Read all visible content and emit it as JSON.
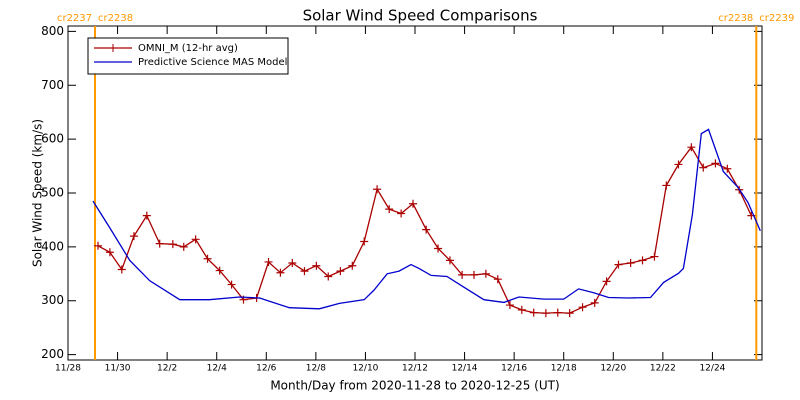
{
  "chart_data": {
    "type": "line",
    "title": "Solar Wind Speed Comparisons",
    "xlabel": "Month/Day from 2020-11-28 to 2020-12-25 (UT)",
    "ylabel": "Solar Wind Speed (km/s)",
    "xlim": [
      0,
      28
    ],
    "ylim": [
      190,
      810
    ],
    "xticks": [
      {
        "value": 0,
        "label": "11/28"
      },
      {
        "value": 2,
        "label": "11/30"
      },
      {
        "value": 4,
        "label": "12/2"
      },
      {
        "value": 6,
        "label": "12/4"
      },
      {
        "value": 8,
        "label": "12/6"
      },
      {
        "value": 10,
        "label": "12/8"
      },
      {
        "value": 12,
        "label": "12/10"
      },
      {
        "value": 14,
        "label": "12/12"
      },
      {
        "value": 16,
        "label": "12/14"
      },
      {
        "value": 18,
        "label": "12/16"
      },
      {
        "value": 20,
        "label": "12/18"
      },
      {
        "value": 22,
        "label": "12/20"
      },
      {
        "value": 24,
        "label": "12/22"
      },
      {
        "value": 26,
        "label": "12/24"
      }
    ],
    "yticks": [
      200,
      300,
      400,
      500,
      600,
      700,
      800
    ],
    "legend": "upper left",
    "boundary_color": "#ff9900",
    "boundaries": [
      {
        "x": 1.09,
        "labels": [
          "cr2237",
          "cr2238"
        ]
      },
      {
        "x": 27.77,
        "labels": [
          "cr2238",
          "cr2239"
        ]
      }
    ],
    "series": [
      {
        "name": "OMNI_M (12-hr avg)",
        "color": "#aa0000",
        "marker": "cross",
        "x": [
          1.21,
          1.69,
          2.17,
          2.66,
          3.18,
          3.7,
          4.23,
          4.67,
          5.15,
          5.63,
          6.12,
          6.6,
          7.08,
          7.61,
          8.09,
          8.57,
          9.05,
          9.54,
          10.02,
          10.5,
          10.99,
          11.47,
          11.95,
          12.47,
          12.96,
          13.44,
          13.92,
          14.45,
          14.93,
          15.41,
          15.9,
          16.38,
          16.86,
          17.34,
          17.83,
          18.31,
          18.79,
          19.28,
          19.76,
          20.24,
          20.76,
          21.25,
          21.73,
          22.21,
          22.7,
          23.18,
          23.66,
          24.14,
          24.63,
          25.15,
          25.63,
          26.12,
          26.6,
          27.08,
          27.57
        ],
        "values": [
          402,
          390,
          358,
          420,
          458,
          406,
          405,
          400,
          414,
          378,
          356,
          330,
          302,
          305,
          372,
          352,
          370,
          355,
          365,
          345,
          355,
          365,
          410,
          507,
          470,
          462,
          480,
          432,
          397,
          375,
          348,
          348,
          350,
          340,
          292,
          283,
          278,
          277,
          278,
          277,
          288,
          296,
          336,
          367,
          370,
          375,
          382,
          514,
          553,
          585,
          547,
          555,
          545,
          506,
          458
        ]
      },
      {
        "name": "Predictive Science MAS Model",
        "color": "#0000cc",
        "marker": "none",
        "x": [
          1.01,
          1.69,
          2.49,
          3.3,
          4.51,
          5.71,
          6.92,
          7.73,
          8.93,
          10.14,
          10.95,
          11.95,
          12.35,
          12.88,
          13.36,
          13.84,
          14.16,
          14.65,
          15.29,
          15.98,
          16.78,
          17.59,
          18.19,
          19.2,
          20.0,
          20.6,
          21.21,
          21.81,
          22.62,
          23.5,
          24.03,
          24.63,
          24.83,
          25.19,
          25.55,
          25.84,
          26.44,
          27.04,
          27.44,
          27.93
        ],
        "values": [
          485,
          435,
          375,
          337,
          302,
          302,
          307,
          305,
          287,
          285,
          295,
          302,
          320,
          350,
          355,
          367,
          360,
          347,
          345,
          325,
          302,
          297,
          307,
          303,
          303,
          322,
          315,
          306,
          305,
          306,
          334,
          351,
          360,
          460,
          610,
          618,
          540,
          510,
          482,
          430
        ]
      }
    ]
  }
}
